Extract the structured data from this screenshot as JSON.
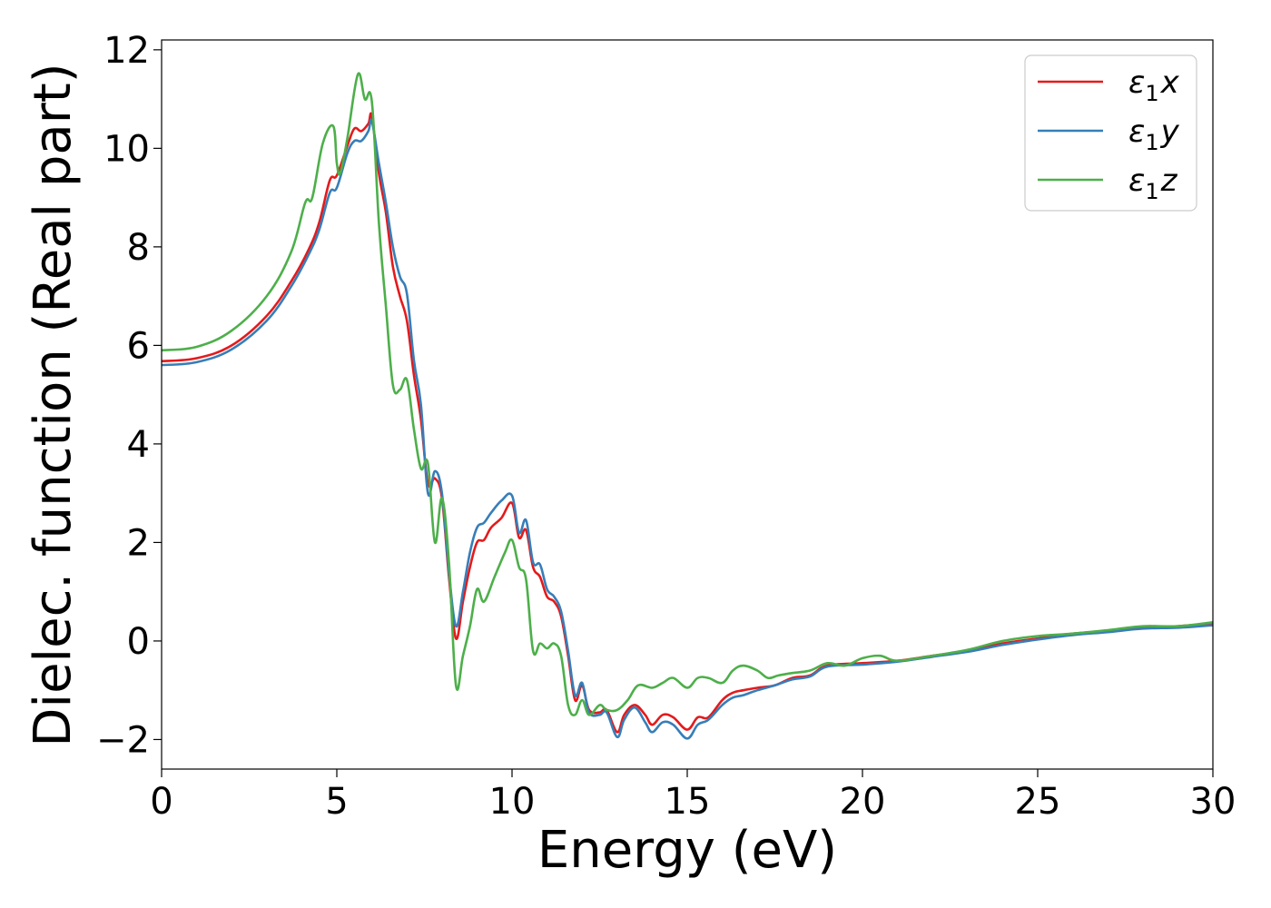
{
  "chart_data": {
    "type": "line",
    "title": "",
    "xlabel": "Energy (eV)",
    "ylabel": "Dielec. function (Real part)",
    "xlim": [
      0,
      30
    ],
    "ylim": [
      -2.6,
      12.2
    ],
    "xticks": [
      0,
      5,
      10,
      15,
      20,
      25,
      30
    ],
    "yticks": [
      -2,
      0,
      2,
      4,
      6,
      8,
      10,
      12
    ],
    "x_tick_labels": [
      "0",
      "5",
      "10",
      "15",
      "20",
      "25",
      "30"
    ],
    "y_tick_labels": [
      "−2",
      "0",
      "2",
      "4",
      "6",
      "8",
      "10",
      "12"
    ],
    "grid": false,
    "legend_position": "top-right",
    "series": [
      {
        "name": "ε₁x",
        "legend_main": "ε",
        "legend_sub": "1",
        "legend_var": "x",
        "color": "#e41a1c",
        "points": [
          [
            0,
            5.68
          ],
          [
            1,
            5.74
          ],
          [
            2,
            6.0
          ],
          [
            3,
            6.6
          ],
          [
            3.7,
            7.3
          ],
          [
            4.2,
            7.95
          ],
          [
            4.5,
            8.5
          ],
          [
            4.8,
            9.35
          ],
          [
            5.0,
            9.45
          ],
          [
            5.3,
            10.05
          ],
          [
            5.5,
            10.4
          ],
          [
            5.7,
            10.35
          ],
          [
            5.9,
            10.5
          ],
          [
            6.0,
            10.65
          ],
          [
            6.2,
            9.5
          ],
          [
            6.4,
            8.7
          ],
          [
            6.6,
            7.6
          ],
          [
            6.8,
            7.0
          ],
          [
            7.0,
            6.5
          ],
          [
            7.2,
            5.4
          ],
          [
            7.4,
            4.5
          ],
          [
            7.6,
            3.2
          ],
          [
            7.8,
            3.3
          ],
          [
            8.0,
            2.9
          ],
          [
            8.2,
            1.3
          ],
          [
            8.4,
            0.05
          ],
          [
            8.6,
            0.8
          ],
          [
            8.8,
            1.5
          ],
          [
            9.0,
            2.0
          ],
          [
            9.2,
            2.05
          ],
          [
            9.4,
            2.3
          ],
          [
            9.7,
            2.5
          ],
          [
            10.0,
            2.8
          ],
          [
            10.2,
            2.1
          ],
          [
            10.4,
            2.25
          ],
          [
            10.6,
            1.5
          ],
          [
            10.8,
            1.3
          ],
          [
            11.0,
            0.9
          ],
          [
            11.2,
            0.8
          ],
          [
            11.4,
            0.5
          ],
          [
            11.6,
            -0.3
          ],
          [
            11.8,
            -1.2
          ],
          [
            12.0,
            -0.9
          ],
          [
            12.2,
            -1.4
          ],
          [
            12.5,
            -1.45
          ],
          [
            12.7,
            -1.4
          ],
          [
            13.0,
            -1.85
          ],
          [
            13.2,
            -1.5
          ],
          [
            13.5,
            -1.3
          ],
          [
            13.8,
            -1.5
          ],
          [
            14.0,
            -1.7
          ],
          [
            14.3,
            -1.5
          ],
          [
            14.6,
            -1.55
          ],
          [
            15.0,
            -1.8
          ],
          [
            15.3,
            -1.55
          ],
          [
            15.6,
            -1.55
          ],
          [
            16.0,
            -1.2
          ],
          [
            16.3,
            -1.05
          ],
          [
            16.6,
            -1.0
          ],
          [
            17.0,
            -0.95
          ],
          [
            17.5,
            -0.9
          ],
          [
            18.0,
            -0.75
          ],
          [
            18.5,
            -0.7
          ],
          [
            19.0,
            -0.5
          ],
          [
            20.0,
            -0.45
          ],
          [
            21.0,
            -0.4
          ],
          [
            22.0,
            -0.3
          ],
          [
            23.0,
            -0.2
          ],
          [
            24.0,
            -0.05
          ],
          [
            25.0,
            0.05
          ],
          [
            26.0,
            0.15
          ],
          [
            27.0,
            0.2
          ],
          [
            28.0,
            0.28
          ],
          [
            29.0,
            0.3
          ],
          [
            30.0,
            0.36
          ]
        ]
      },
      {
        "name": "ε₁y",
        "legend_main": "ε",
        "legend_sub": "1",
        "legend_var": "y",
        "color": "#377eb8",
        "points": [
          [
            0,
            5.6
          ],
          [
            1,
            5.66
          ],
          [
            2,
            5.92
          ],
          [
            3,
            6.5
          ],
          [
            3.7,
            7.2
          ],
          [
            4.2,
            7.85
          ],
          [
            4.5,
            8.35
          ],
          [
            4.8,
            9.1
          ],
          [
            5.0,
            9.2
          ],
          [
            5.3,
            9.9
          ],
          [
            5.5,
            10.15
          ],
          [
            5.7,
            10.15
          ],
          [
            5.9,
            10.35
          ],
          [
            6.0,
            10.55
          ],
          [
            6.2,
            9.7
          ],
          [
            6.4,
            8.9
          ],
          [
            6.6,
            8.0
          ],
          [
            6.8,
            7.4
          ],
          [
            7.0,
            7.05
          ],
          [
            7.2,
            5.7
          ],
          [
            7.4,
            4.8
          ],
          [
            7.6,
            3.0
          ],
          [
            7.8,
            3.45
          ],
          [
            8.0,
            3.0
          ],
          [
            8.2,
            1.4
          ],
          [
            8.4,
            0.3
          ],
          [
            8.6,
            1.0
          ],
          [
            8.8,
            1.8
          ],
          [
            9.0,
            2.3
          ],
          [
            9.2,
            2.4
          ],
          [
            9.4,
            2.6
          ],
          [
            9.7,
            2.85
          ],
          [
            10.0,
            2.95
          ],
          [
            10.2,
            2.2
          ],
          [
            10.4,
            2.45
          ],
          [
            10.6,
            1.6
          ],
          [
            10.8,
            1.55
          ],
          [
            11.0,
            1.05
          ],
          [
            11.2,
            0.9
          ],
          [
            11.4,
            0.6
          ],
          [
            11.6,
            -0.2
          ],
          [
            11.8,
            -1.1
          ],
          [
            12.0,
            -0.85
          ],
          [
            12.2,
            -1.45
          ],
          [
            12.5,
            -1.5
          ],
          [
            12.7,
            -1.45
          ],
          [
            13.0,
            -1.95
          ],
          [
            13.2,
            -1.6
          ],
          [
            13.5,
            -1.35
          ],
          [
            13.8,
            -1.65
          ],
          [
            14.0,
            -1.85
          ],
          [
            14.3,
            -1.65
          ],
          [
            14.6,
            -1.7
          ],
          [
            15.0,
            -1.98
          ],
          [
            15.3,
            -1.7
          ],
          [
            15.6,
            -1.6
          ],
          [
            16.0,
            -1.3
          ],
          [
            16.3,
            -1.15
          ],
          [
            16.6,
            -1.1
          ],
          [
            17.0,
            -1.0
          ],
          [
            17.5,
            -0.9
          ],
          [
            18.0,
            -0.78
          ],
          [
            18.5,
            -0.72
          ],
          [
            19.0,
            -0.52
          ],
          [
            20.0,
            -0.48
          ],
          [
            21.0,
            -0.42
          ],
          [
            22.0,
            -0.32
          ],
          [
            23.0,
            -0.22
          ],
          [
            24.0,
            -0.08
          ],
          [
            25.0,
            0.03
          ],
          [
            26.0,
            0.12
          ],
          [
            27.0,
            0.18
          ],
          [
            28.0,
            0.25
          ],
          [
            29.0,
            0.27
          ],
          [
            30.0,
            0.32
          ]
        ]
      },
      {
        "name": "ε₁z",
        "legend_main": "ε",
        "legend_sub": "1",
        "legend_var": "z",
        "color": "#4daf4a",
        "points": [
          [
            0,
            5.9
          ],
          [
            1,
            5.97
          ],
          [
            2,
            6.3
          ],
          [
            3,
            7.0
          ],
          [
            3.7,
            7.9
          ],
          [
            4.1,
            8.9
          ],
          [
            4.3,
            9.0
          ],
          [
            4.6,
            10.1
          ],
          [
            4.9,
            10.45
          ],
          [
            5.0,
            9.7
          ],
          [
            5.1,
            9.5
          ],
          [
            5.3,
            10.2
          ],
          [
            5.6,
            11.5
          ],
          [
            5.8,
            11.0
          ],
          [
            6.0,
            10.95
          ],
          [
            6.2,
            8.5
          ],
          [
            6.4,
            6.8
          ],
          [
            6.6,
            5.2
          ],
          [
            6.8,
            5.1
          ],
          [
            7.0,
            5.3
          ],
          [
            7.2,
            4.3
          ],
          [
            7.4,
            3.5
          ],
          [
            7.6,
            3.6
          ],
          [
            7.8,
            2.0
          ],
          [
            8.0,
            2.9
          ],
          [
            8.2,
            1.6
          ],
          [
            8.4,
            -0.9
          ],
          [
            8.6,
            -0.3
          ],
          [
            8.8,
            0.3
          ],
          [
            9.0,
            1.05
          ],
          [
            9.2,
            0.8
          ],
          [
            9.5,
            1.3
          ],
          [
            9.8,
            1.8
          ],
          [
            10.0,
            2.05
          ],
          [
            10.2,
            1.5
          ],
          [
            10.4,
            1.25
          ],
          [
            10.6,
            -0.2
          ],
          [
            10.8,
            -0.05
          ],
          [
            11.0,
            -0.15
          ],
          [
            11.2,
            -0.05
          ],
          [
            11.4,
            -0.3
          ],
          [
            11.6,
            -1.3
          ],
          [
            11.8,
            -1.5
          ],
          [
            12.0,
            -1.2
          ],
          [
            12.2,
            -1.5
          ],
          [
            12.5,
            -1.3
          ],
          [
            12.7,
            -1.4
          ],
          [
            13.0,
            -1.4
          ],
          [
            13.3,
            -1.2
          ],
          [
            13.6,
            -0.9
          ],
          [
            14.0,
            -0.95
          ],
          [
            14.3,
            -0.85
          ],
          [
            14.6,
            -0.75
          ],
          [
            15.0,
            -0.95
          ],
          [
            15.3,
            -0.75
          ],
          [
            15.6,
            -0.75
          ],
          [
            16.0,
            -0.85
          ],
          [
            16.3,
            -0.6
          ],
          [
            16.6,
            -0.5
          ],
          [
            17.0,
            -0.6
          ],
          [
            17.3,
            -0.75
          ],
          [
            17.6,
            -0.7
          ],
          [
            18.0,
            -0.65
          ],
          [
            18.5,
            -0.6
          ],
          [
            19.0,
            -0.45
          ],
          [
            19.5,
            -0.5
          ],
          [
            20.0,
            -0.35
          ],
          [
            20.5,
            -0.3
          ],
          [
            21.0,
            -0.4
          ],
          [
            22.0,
            -0.3
          ],
          [
            23.0,
            -0.18
          ],
          [
            24.0,
            0.0
          ],
          [
            25.0,
            0.1
          ],
          [
            26.0,
            0.15
          ],
          [
            27.0,
            0.22
          ],
          [
            28.0,
            0.3
          ],
          [
            29.0,
            0.3
          ],
          [
            30.0,
            0.38
          ]
        ]
      }
    ]
  }
}
